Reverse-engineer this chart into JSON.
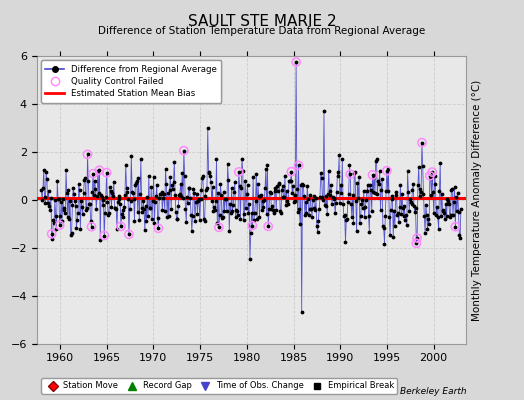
{
  "title": "SAULT STE MARIE 2",
  "subtitle": "Difference of Station Temperature Data from Regional Average",
  "ylabel": "Monthly Temperature Anomaly Difference (°C)",
  "ylim": [
    -6,
    6
  ],
  "xlim": [
    1957.5,
    2003.5
  ],
  "xticks": [
    1960,
    1965,
    1970,
    1975,
    1980,
    1985,
    1990,
    1995,
    2000
  ],
  "yticks": [
    -6,
    -4,
    -2,
    0,
    2,
    4,
    6
  ],
  "bias": 0.1,
  "bias_color": "#ff0000",
  "line_color": "#4444cc",
  "dot_color": "#000000",
  "qc_color": "#ff88ff",
  "bg_color": "#d8d8d8",
  "plot_bg_color": "#e8e8e8",
  "seed": 42,
  "n_points": 528,
  "x_start": 1958.0,
  "x_end": 2002.9167,
  "title_fontsize": 11,
  "subtitle_fontsize": 7.5,
  "tick_fontsize": 8,
  "ylabel_fontsize": 7.5
}
